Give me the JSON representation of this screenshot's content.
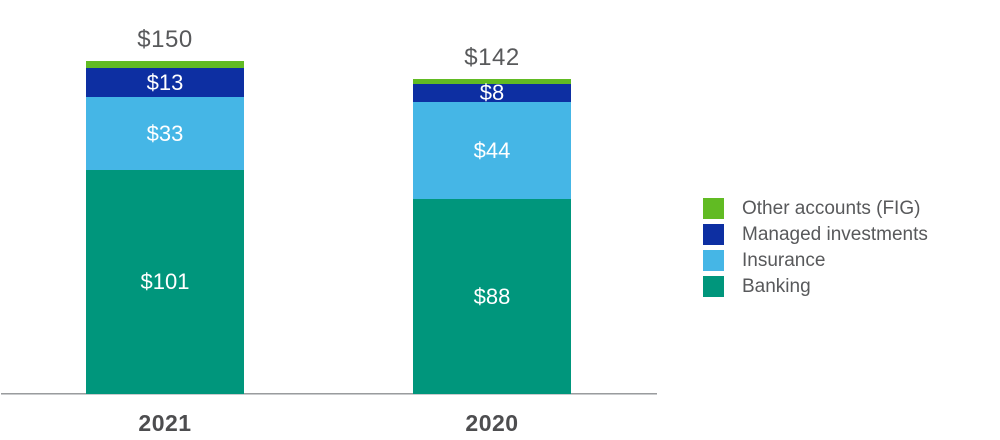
{
  "chart_data": {
    "type": "bar",
    "variant": "stacked-vertical",
    "title": "",
    "categories": [
      "2021",
      "2020"
    ],
    "series": [
      {
        "name": "Banking",
        "color": "#00967C",
        "values": [
          101,
          88
        ],
        "value_labels": [
          "$101",
          "$88"
        ]
      },
      {
        "name": "Insurance",
        "color": "#45B6E6",
        "values": [
          33,
          44
        ],
        "value_labels": [
          "$33",
          "$44"
        ]
      },
      {
        "name": "Managed investments",
        "color": "#0D2FA2",
        "values": [
          13,
          8
        ],
        "value_labels": [
          "$13",
          "$8"
        ]
      },
      {
        "name": "Other accounts (FIG)",
        "color": "#61BB23",
        "values": [
          3,
          2
        ],
        "value_labels": [
          "",
          ""
        ]
      }
    ],
    "totals": [
      150,
      142
    ],
    "total_labels": [
      "$150",
      "$142"
    ],
    "xlabel": "",
    "ylabel": "",
    "y_axis_visible": false,
    "gridlines": false,
    "baseline_visible": true,
    "legend_position": "right"
  },
  "legend": {
    "items": [
      {
        "label": "Other accounts (FIG)",
        "color": "#61BB23"
      },
      {
        "label": "Managed investments",
        "color": "#0D2FA2"
      },
      {
        "label": "Insurance",
        "color": "#45B6E6"
      },
      {
        "label": "Banking",
        "color": "#00967C"
      }
    ]
  },
  "colors": {
    "total_label": "#58595B",
    "axis_label": "#4D4D4F",
    "legend_text": "#58595B",
    "segment_label": "#FFFFFF",
    "baseline": "#9A9C9E",
    "background": "#FFFFFF"
  }
}
